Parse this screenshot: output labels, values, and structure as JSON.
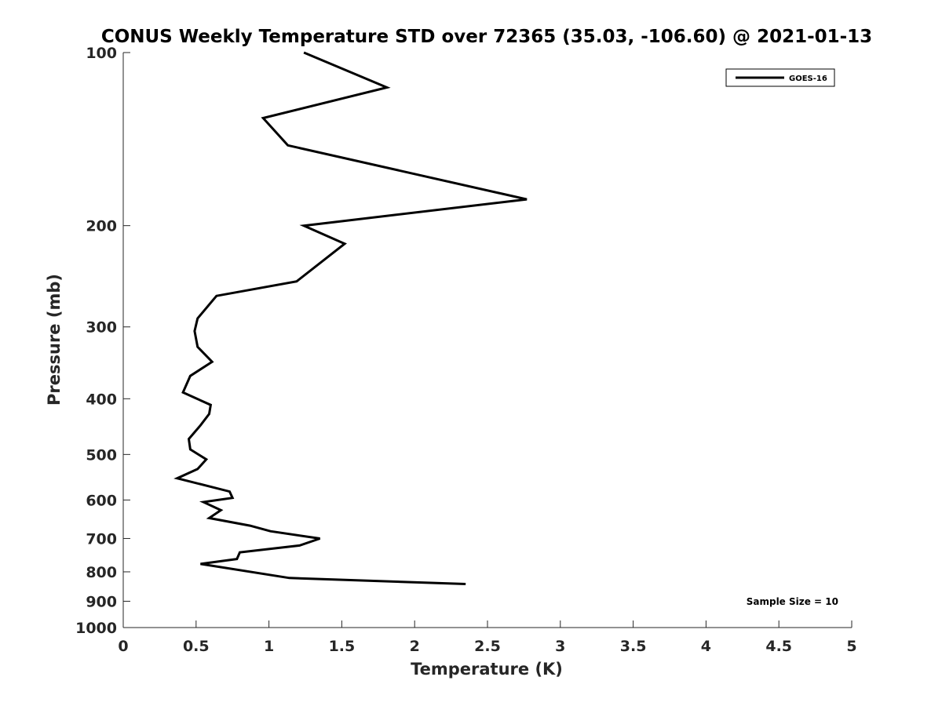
{
  "chart_data": {
    "type": "line",
    "title": "CONUS Weekly Temperature STD over 72365 (35.03, -106.60) @ 2021-01-13",
    "xlabel": "Temperature (K)",
    "ylabel": "Pressure (mb)",
    "xlim": [
      0,
      5
    ],
    "ylim": [
      1000,
      100
    ],
    "y_scale": "log",
    "y_reversed": true,
    "x_ticks": [
      "0",
      "0.5",
      "1",
      "1.5",
      "2",
      "2.5",
      "3",
      "3.5",
      "4",
      "4.5",
      "5"
    ],
    "y_ticks": [
      "100",
      "200",
      "300",
      "400",
      "500",
      "600",
      "700",
      "800",
      "900",
      "1000"
    ],
    "grid": false,
    "legend": {
      "position": "top-right",
      "entries": [
        "GOES-16"
      ]
    },
    "annotation": "Sample Size = 10",
    "series": [
      {
        "name": "GOES-16",
        "color": "#000000",
        "x": [
          1.24,
          1.81,
          0.96,
          1.13,
          2.77,
          1.24,
          1.52,
          1.19,
          0.64,
          0.51,
          0.49,
          0.51,
          0.61,
          0.46,
          0.41,
          0.6,
          0.59,
          0.53,
          0.45,
          0.46,
          0.57,
          0.51,
          0.37,
          0.73,
          0.75,
          0.55,
          0.67,
          0.59,
          0.87,
          1.01,
          1.35,
          1.21,
          0.8,
          0.78,
          0.53,
          1.14,
          2.35
        ],
        "y": [
          100,
          115,
          130,
          145,
          180,
          200,
          215,
          250,
          265,
          290,
          305,
          325,
          345,
          365,
          390,
          410,
          425,
          445,
          470,
          490,
          510,
          530,
          550,
          580,
          595,
          605,
          625,
          645,
          665,
          680,
          700,
          720,
          740,
          760,
          775,
          820,
          840
        ]
      }
    ]
  }
}
